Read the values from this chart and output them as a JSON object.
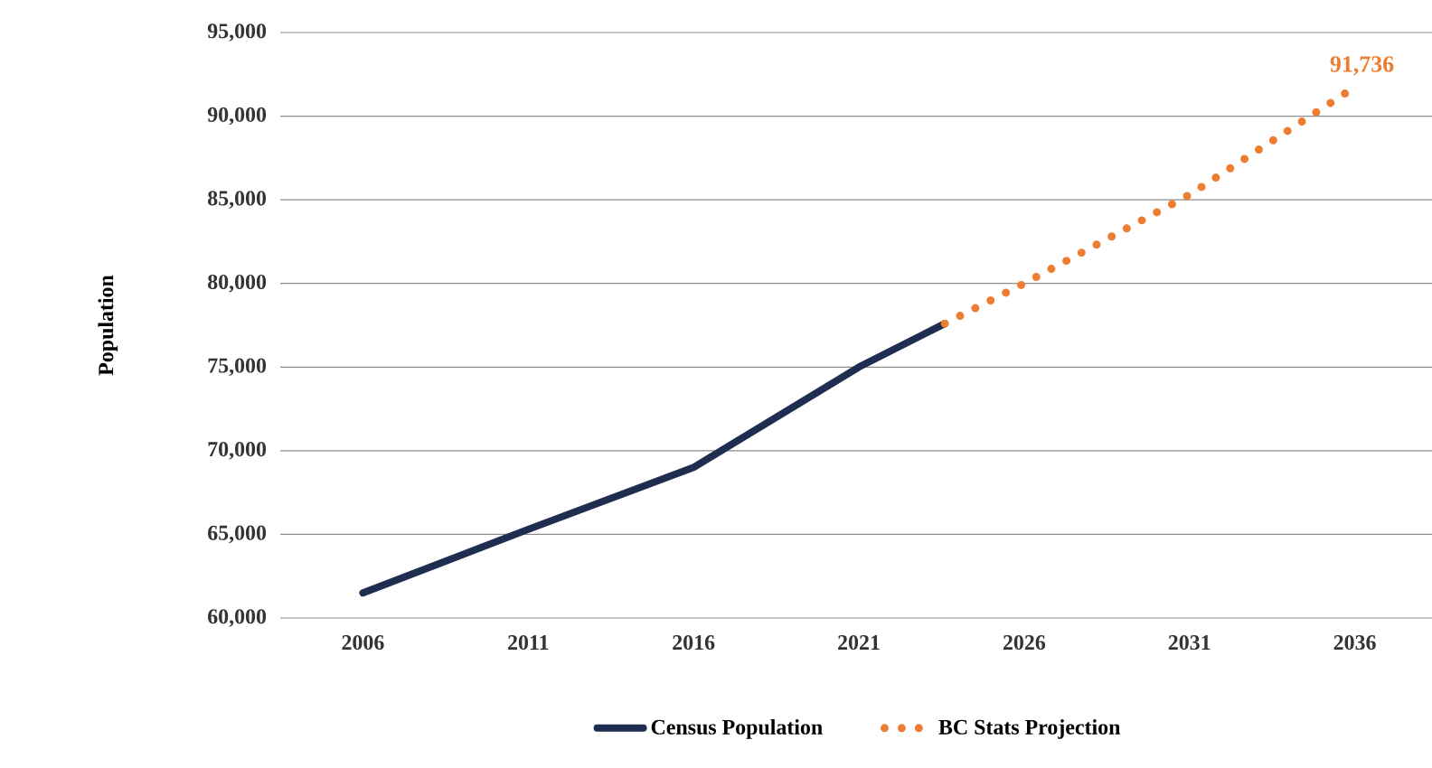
{
  "chart_data": {
    "type": "line",
    "ylabel": "Population",
    "xlim": [
      2003.5,
      2038.5
    ],
    "xticks": [
      2006,
      2011,
      2016,
      2021,
      2026,
      2031,
      2036
    ],
    "ylim": [
      60000,
      95000
    ],
    "yticks": [
      {
        "value": 60000,
        "label": "60,000"
      },
      {
        "value": 65000,
        "label": "65,000"
      },
      {
        "value": 70000,
        "label": "70,000"
      },
      {
        "value": 75000,
        "label": "75,000"
      },
      {
        "value": 80000,
        "label": "80,000"
      },
      {
        "value": 85000,
        "label": "85,000"
      },
      {
        "value": 90000,
        "label": "90,000"
      },
      {
        "value": 95000,
        "label": "95,000"
      }
    ],
    "grid": "y",
    "legend": "bottom",
    "marker": "none",
    "series": [
      {
        "name": "Census Population",
        "color": "#1f2d50",
        "line_style": "solid",
        "x": [
          2006,
          2011,
          2016,
          2021,
          2023.6
        ],
        "values": [
          61500,
          65300,
          69000,
          75000,
          77600
        ]
      },
      {
        "name": "BC Stats Projection",
        "color": "#ed7d31",
        "line_style": "dotted",
        "x": [
          2023.6,
          2026,
          2031,
          2036
        ],
        "values": [
          77600,
          80000,
          85300,
          91736
        ]
      }
    ],
    "annotations": [
      {
        "text": "91,736",
        "x": 2036,
        "y": 91736
      }
    ]
  }
}
